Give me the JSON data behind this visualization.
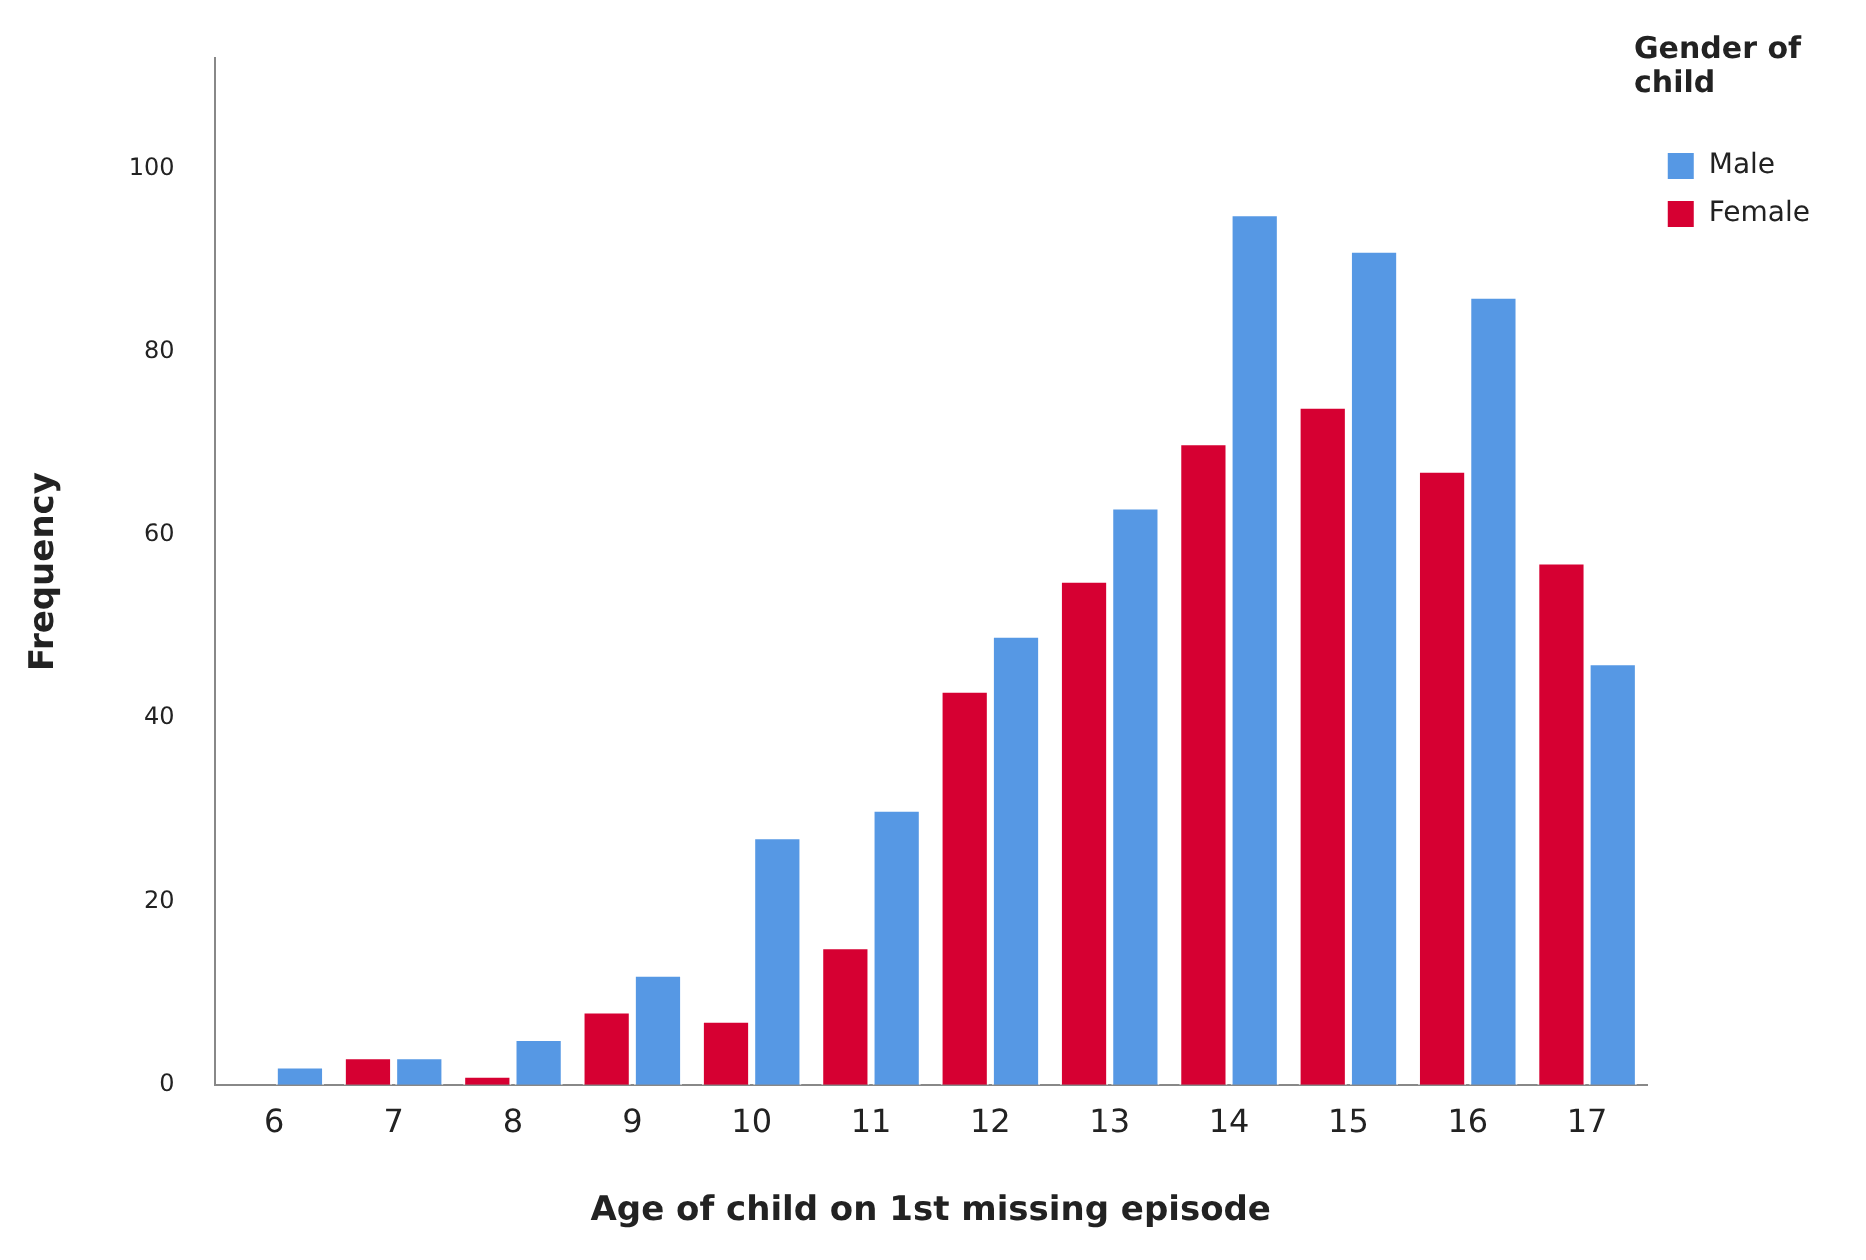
{
  "chart_data": {
    "type": "bar",
    "xlabel": "Age of child on 1st missing episode",
    "ylabel": "Frequency",
    "legend_title": "Gender of child",
    "categories": [
      "6",
      "7",
      "8",
      "9",
      "10",
      "11",
      "12",
      "13",
      "14",
      "15",
      "16",
      "17"
    ],
    "series": [
      {
        "name": "Male",
        "color": "#5698e4",
        "values": [
          2,
          3,
          5,
          12,
          27,
          30,
          49,
          63,
          95,
          91,
          86,
          46
        ]
      },
      {
        "name": "Female",
        "color": "#d60032",
        "values": [
          0,
          3,
          1,
          8,
          7,
          15,
          43,
          55,
          70,
          74,
          67,
          57
        ]
      }
    ],
    "ylim": [
      0,
      112
    ],
    "yticks": [
      0,
      20,
      40,
      60,
      80,
      100
    ],
    "grid": false,
    "legend": "top right"
  }
}
